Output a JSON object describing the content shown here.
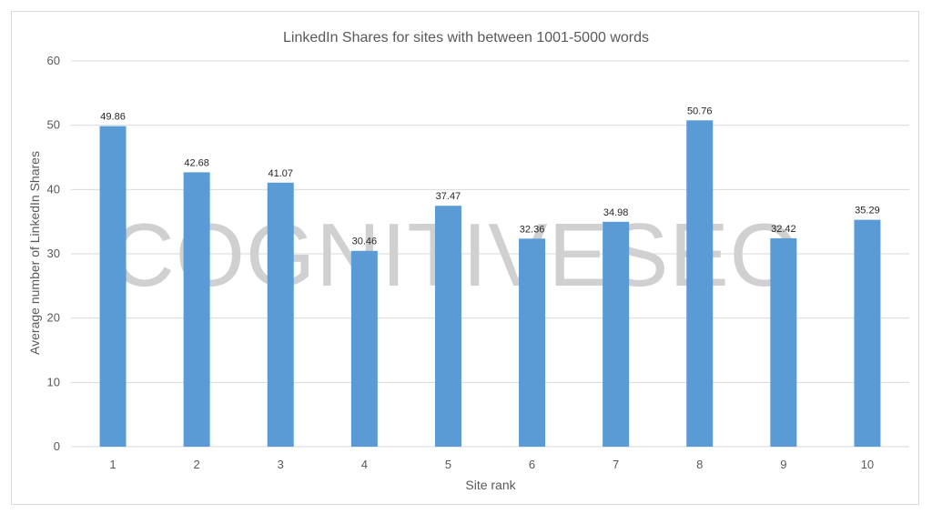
{
  "chart_data": {
    "type": "bar",
    "title": "LinkedIn Shares for sites with between 1001-5000 words",
    "xlabel": "Site rank",
    "ylabel": "Average number of LinkedIn Shares",
    "categories": [
      "1",
      "2",
      "3",
      "4",
      "5",
      "6",
      "7",
      "8",
      "9",
      "10"
    ],
    "values": [
      49.86,
      42.68,
      41.07,
      30.46,
      37.47,
      32.36,
      34.98,
      50.76,
      32.42,
      35.29
    ],
    "data_labels": [
      "49.86",
      "42.68",
      "41.07",
      "30.46",
      "37.47",
      "32.36",
      "34.98",
      "50.76",
      "32.42",
      "35.29"
    ],
    "ylim": [
      0,
      60
    ],
    "yticks": [
      "0",
      "10",
      "20",
      "30",
      "40",
      "50",
      "60"
    ],
    "grid": true,
    "legend": "none",
    "bar_color": "#5b9bd5",
    "grid_color": "#d9d9d9"
  },
  "watermark": "COGNITIVESEO"
}
